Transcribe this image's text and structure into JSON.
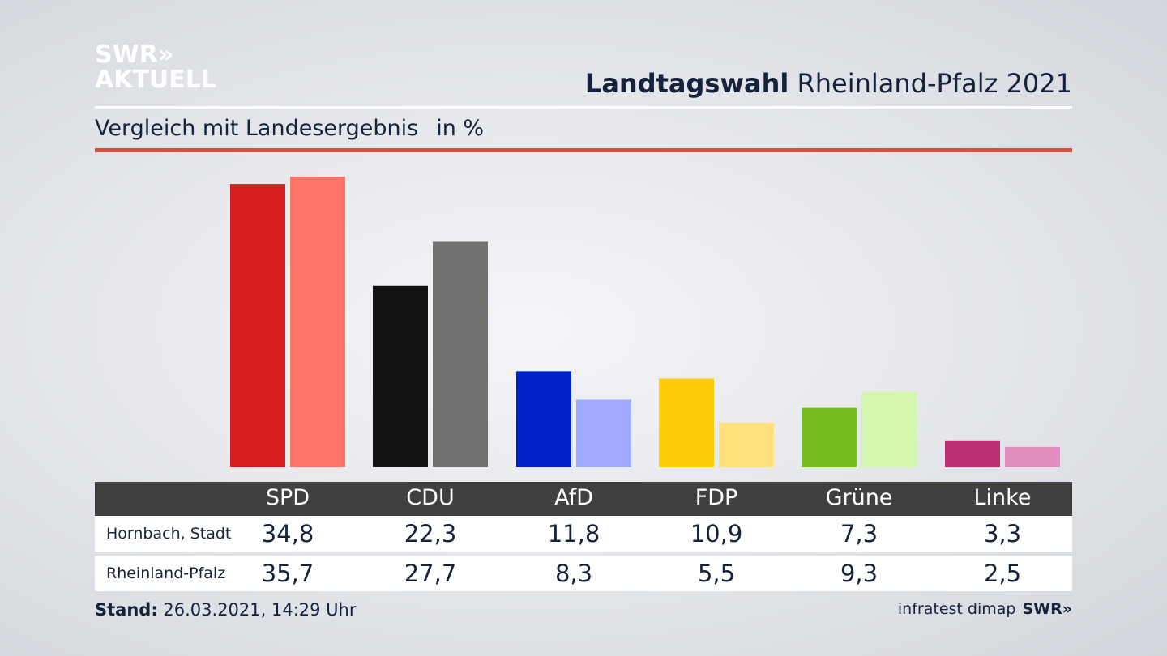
{
  "logo": {
    "line1": "SWR»",
    "line2": "AKTUELL"
  },
  "header": {
    "title_bold": "Landtagswahl",
    "title_rest": " Rheinland-Pfalz 2021",
    "subtitle": "Vergleich mit Landesergebnis",
    "unit": "in %"
  },
  "chart_data": {
    "type": "bar",
    "categories": [
      "SPD",
      "CDU",
      "AfD",
      "FDP",
      "Grüne",
      "Linke"
    ],
    "series": [
      {
        "name": "Hornbach, Stadt",
        "values": [
          34.8,
          22.3,
          11.8,
          10.9,
          7.3,
          3.3
        ],
        "display": [
          "34,8",
          "22,3",
          "11,8",
          "10,9",
          "7,3",
          "3,3"
        ]
      },
      {
        "name": "Rheinland-Pfalz",
        "values": [
          35.7,
          27.7,
          8.3,
          5.5,
          9.3,
          2.5
        ],
        "display": [
          "35,7",
          "27,7",
          "8,3",
          "5,5",
          "9,3",
          "2,5"
        ]
      }
    ],
    "colors_primary": [
      "#d51f1f",
      "#121212",
      "#0021c8",
      "#ffcc0a",
      "#77bd1e",
      "#bc2e74"
    ],
    "colors_secondary": [
      "#ff7468",
      "#727170",
      "#9ea9ff",
      "#fee17a",
      "#d4f6ac",
      "#e18cbd"
    ],
    "ylim": [
      0,
      36
    ]
  },
  "footer": {
    "stand_label": "Stand:",
    "stand_value": " 26.03.2021, 14:29 Uhr",
    "source": "infratest dimap",
    "brand": "SWR»"
  }
}
